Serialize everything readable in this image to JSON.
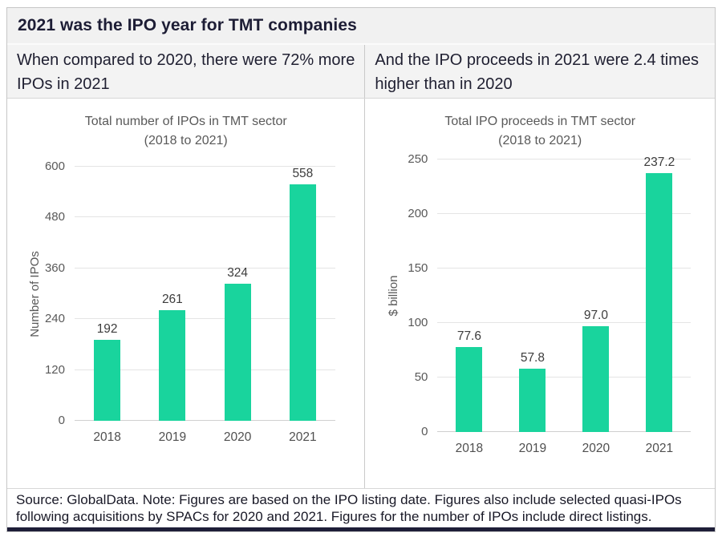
{
  "header": {
    "title": "2021 was the IPO year for TMT companies"
  },
  "subtitles": {
    "left": "When compared to 2020, there were 72% more IPOs in 2021",
    "right": "And the IPO proceeds in 2021 were 2.4 times higher than in 2020"
  },
  "footer": {
    "note": "Source: GlobalData. Note: Figures are based on the IPO listing date. Figures also include selected quasi-IPOs following acquisitions by SPACs for 2020 and 2021. Figures for the number of IPOs include direct listings."
  },
  "colors": {
    "bar": "#19d49d",
    "header_text": "#1d1d35",
    "bottom_rule": "#1e1e38",
    "gridline": "#e4e4e4"
  },
  "chart_data": [
    {
      "type": "bar",
      "title": "Total number of IPOs in TMT sector",
      "subtitle": "(2018 to 2021)",
      "categories": [
        "2018",
        "2019",
        "2020",
        "2021"
      ],
      "values": [
        192,
        261,
        324,
        558
      ],
      "value_labels": [
        "192",
        "261",
        "324",
        "558"
      ],
      "xlabel": "",
      "ylabel": "Number of IPOs",
      "ylim": [
        0,
        600
      ],
      "yticks": [
        0,
        120,
        240,
        360,
        480,
        600
      ],
      "grid": true,
      "legend": "none"
    },
    {
      "type": "bar",
      "title": "Total IPO proceeds in TMT sector",
      "subtitle": "(2018 to 2021)",
      "categories": [
        "2018",
        "2019",
        "2020",
        "2021"
      ],
      "values": [
        77.6,
        57.8,
        97.0,
        237.2
      ],
      "value_labels": [
        "77.6",
        "57.8",
        "97.0",
        "237.2"
      ],
      "xlabel": "",
      "ylabel": "$ billion",
      "ylim": [
        0,
        250
      ],
      "yticks": [
        0,
        50,
        100,
        150,
        200,
        250
      ],
      "grid": true,
      "legend": "none"
    }
  ]
}
